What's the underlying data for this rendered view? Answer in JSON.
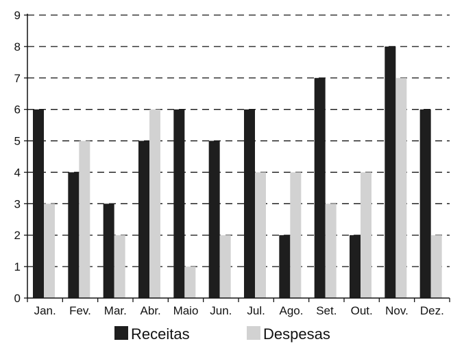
{
  "chart_data": {
    "type": "bar",
    "title": "",
    "xlabel": "",
    "ylabel": "",
    "categories": [
      "Jan.",
      "Fev.",
      "Mar.",
      "Abr.",
      "Maio",
      "Jun.",
      "Jul.",
      "Ago.",
      "Set.",
      "Out.",
      "Nov.",
      "Dez."
    ],
    "series": [
      {
        "name": "Receitas",
        "color": "#1e1e1e",
        "values": [
          6,
          4,
          3,
          5,
          6,
          5,
          6,
          2,
          7,
          2,
          8,
          6
        ]
      },
      {
        "name": "Despesas",
        "color": "#d2d2d2",
        "values": [
          3,
          5,
          2,
          6,
          1,
          2,
          4,
          4,
          3,
          4,
          7,
          2
        ]
      }
    ],
    "ylim": [
      0,
      9
    ],
    "yticks": [
      0,
      1,
      2,
      3,
      4,
      5,
      6,
      7,
      8,
      9
    ],
    "grid": "horizontal-dashed",
    "legend_position": "bottom"
  }
}
